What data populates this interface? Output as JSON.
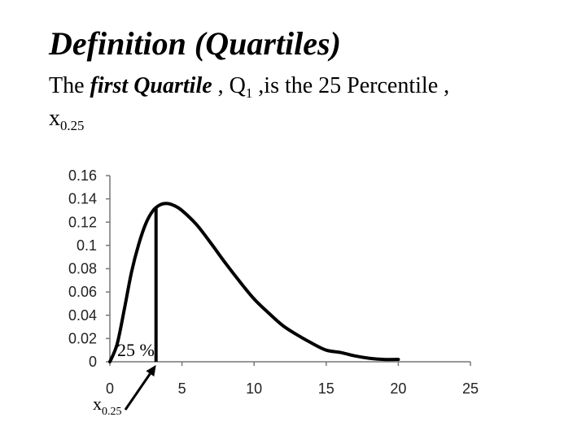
{
  "title": "Definition (Quartiles)",
  "desc": {
    "pre": "The ",
    "em": "first Quartile",
    "mid1": " , Q",
    "q_sub": "1",
    "mid2": " ,is the 25 Percentile ,",
    "x": "x",
    "x_sub": "0.25"
  },
  "chart_data": {
    "type": "line",
    "xlim": [
      0,
      25
    ],
    "ylim": [
      0,
      0.16
    ],
    "xticks": [
      "0",
      "5",
      "10",
      "15",
      "20",
      "25"
    ],
    "yticks": [
      "0",
      "0.02",
      "0.04",
      "0.06",
      "0.08",
      "0.1",
      "0.12",
      "0.14",
      "0.16"
    ],
    "grid": false,
    "series": [
      {
        "x": [
          0,
          0.5,
          1,
          1.5,
          2,
          2.5,
          3,
          3.5,
          4,
          4.5,
          5,
          6,
          7,
          8,
          9,
          10,
          11,
          12,
          13,
          14,
          15,
          16,
          17,
          18,
          19,
          20
        ],
        "y": [
          0,
          0.015,
          0.045,
          0.077,
          0.101,
          0.119,
          0.13,
          0.135,
          0.136,
          0.134,
          0.13,
          0.118,
          0.102,
          0.085,
          0.069,
          0.054,
          0.042,
          0.031,
          0.023,
          0.016,
          0.01,
          0.008,
          0.005,
          0.003,
          0.002,
          0.002
        ]
      }
    ],
    "quartile_x": 3.2,
    "area_label": "25 %",
    "marker_label": "x",
    "marker_sub": "0.25"
  }
}
